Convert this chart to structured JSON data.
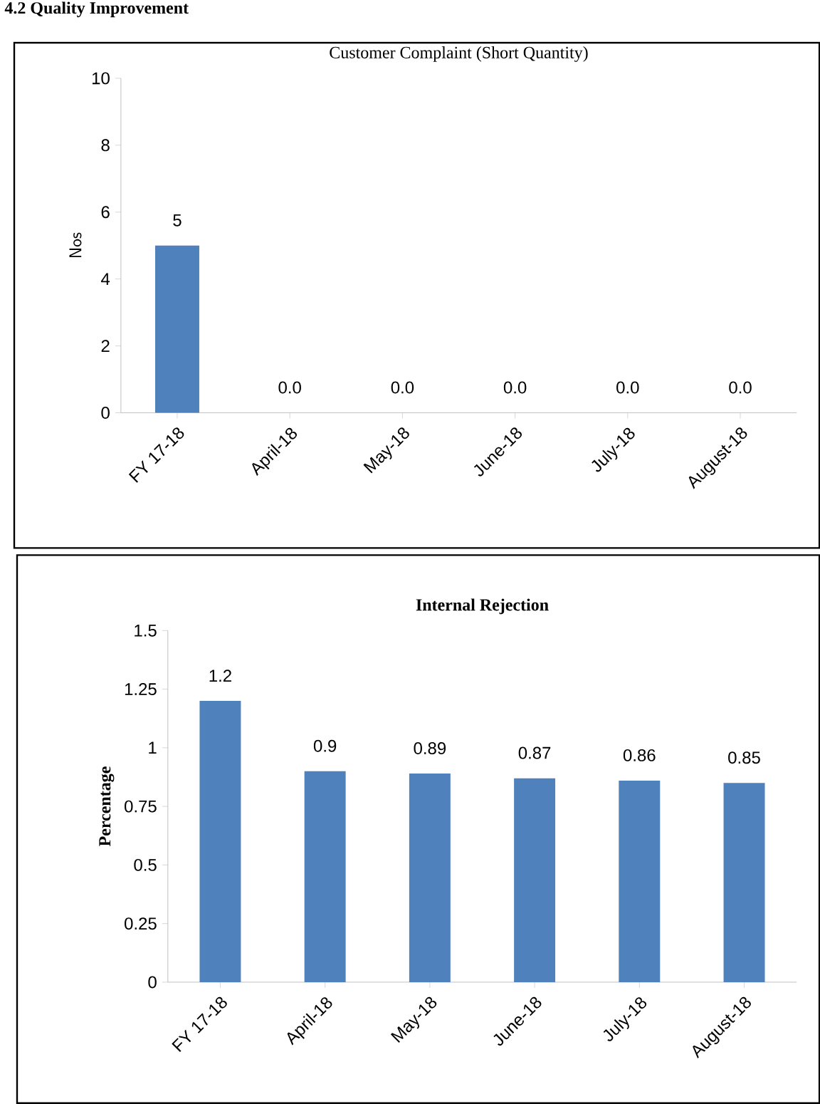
{
  "chart_data": [
    {
      "type": "bar",
      "title": "Customer Complaint (Short Quantity)",
      "ylabel": "Nos",
      "annotations": [
        "4.2 Quality Improvement"
      ],
      "categories": [
        "FY 17-18",
        "April-18",
        "May-18",
        "June-18",
        "July-18",
        "August-18"
      ],
      "values": [
        5,
        0,
        0,
        0,
        0,
        0
      ],
      "value_labels": [
        "5",
        "0.0",
        "0.0",
        "0.0",
        "0.0",
        "0.0"
      ],
      "color": "#4f81bd",
      "ylim": [
        0,
        10
      ],
      "yticks": [
        0,
        2,
        4,
        6,
        8,
        10
      ]
    },
    {
      "type": "bar",
      "title": "Internal Rejection",
      "ylabel": "Percentage",
      "categories": [
        "FY 17-18",
        "April-18",
        "May-18",
        "June-18",
        "July-18",
        "August-18"
      ],
      "values": [
        1.2,
        0.9,
        0.89,
        0.87,
        0.86,
        0.85
      ],
      "data_labels": true,
      "color": "#4f81bd",
      "ylim": [
        0,
        1.5
      ],
      "yticks": [
        0,
        0.25,
        0.5,
        0.75,
        1,
        1.25,
        1.5
      ]
    }
  ]
}
